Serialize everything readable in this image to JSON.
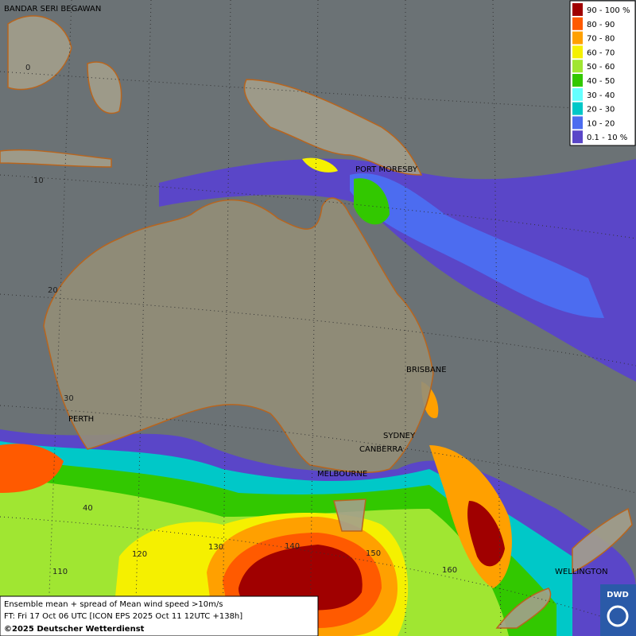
{
  "map": {
    "cities": [
      "BANDAR SERI BEGAWAN",
      "PORT MORESBY",
      "BRISBANE",
      "SYDNEY",
      "CANBERRA",
      "MELBOURNE",
      "PERTH",
      "WELLINGTON"
    ],
    "grid_labels": [
      "0",
      "10",
      "20",
      "30",
      "40",
      "110",
      "120",
      "130",
      "140",
      "150",
      "160"
    ],
    "legend": [
      {
        "label": "90 - 100 %",
        "color": "#a00000"
      },
      {
        "label": "80 - 90",
        "color": "#ff5a00"
      },
      {
        "label": "70 - 80",
        "color": "#ffa000"
      },
      {
        "label": "60 - 70",
        "color": "#f5f000"
      },
      {
        "label": "50 - 60",
        "color": "#a0e632"
      },
      {
        "label": "40 - 50",
        "color": "#32c800"
      },
      {
        "label": "30 - 40",
        "color": "#64ffff"
      },
      {
        "label": "20 - 30",
        "color": "#00c8c8"
      },
      {
        "label": "10 - 20",
        "color": "#4c6cf0"
      },
      {
        "label": "0.1 - 10 %",
        "color": "#5a46c8"
      }
    ],
    "footer": [
      "Ensemble mean + spread of Mean wind speed >10m/s",
      "FT: Fri 17 Oct 06 UTC [ICON EPS 2025 Oct 11 12UTC +138h]",
      "©2025 Deutscher Wetterdienst"
    ],
    "logo": "DWD"
  }
}
